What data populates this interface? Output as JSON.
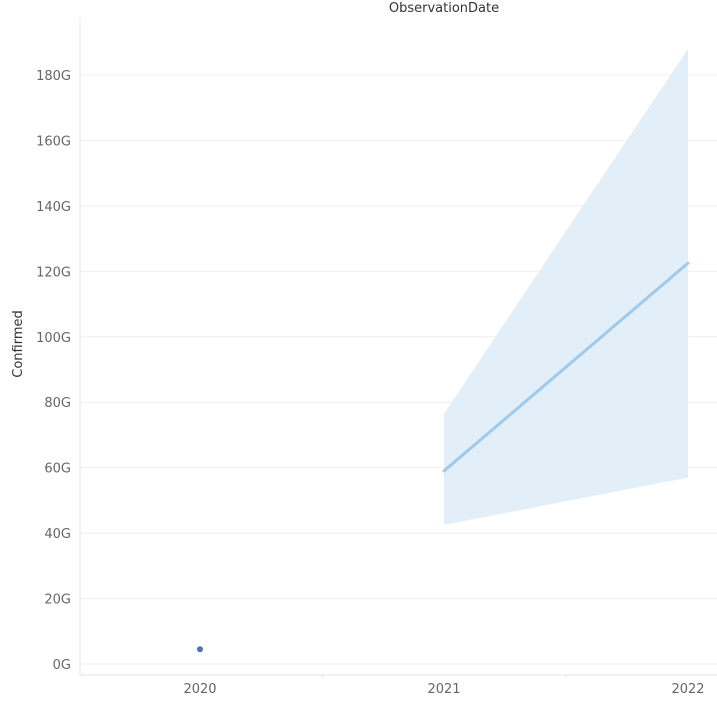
{
  "chart_data": {
    "type": "line",
    "title": "ObservationDate",
    "xlabel": "",
    "ylabel": "Confirmed",
    "x_categories": [
      "2020",
      "2021",
      "2022"
    ],
    "y_ticks": [
      {
        "value": 0,
        "label": "0G"
      },
      {
        "value": 20,
        "label": "20G"
      },
      {
        "value": 40,
        "label": "40G"
      },
      {
        "value": 60,
        "label": "60G"
      },
      {
        "value": 80,
        "label": "80G"
      },
      {
        "value": 100,
        "label": "100G"
      },
      {
        "value": 120,
        "label": "120G"
      },
      {
        "value": 140,
        "label": "140G"
      },
      {
        "value": 160,
        "label": "160G"
      },
      {
        "value": 180,
        "label": "180G"
      }
    ],
    "y_unit": "G",
    "ylim": [
      -2.5,
      198
    ],
    "grid": true,
    "series": [
      {
        "values": [
          {
            "x": "2020",
            "y": 4.5
          }
        ],
        "color": "#4e79a7"
      },
      {
        "values": [
          {
            "x": "2021",
            "y": 59
          },
          {
            "x": "2022",
            "y": 122.5
          }
        ],
        "color": "#9fcaea"
      }
    ],
    "band": {
      "values": [
        {
          "x": "2021",
          "low": 42.5,
          "high": 76.5
        },
        {
          "x": "2022",
          "low": 57,
          "high": 188
        }
      ],
      "color": "#e2eef8"
    }
  }
}
